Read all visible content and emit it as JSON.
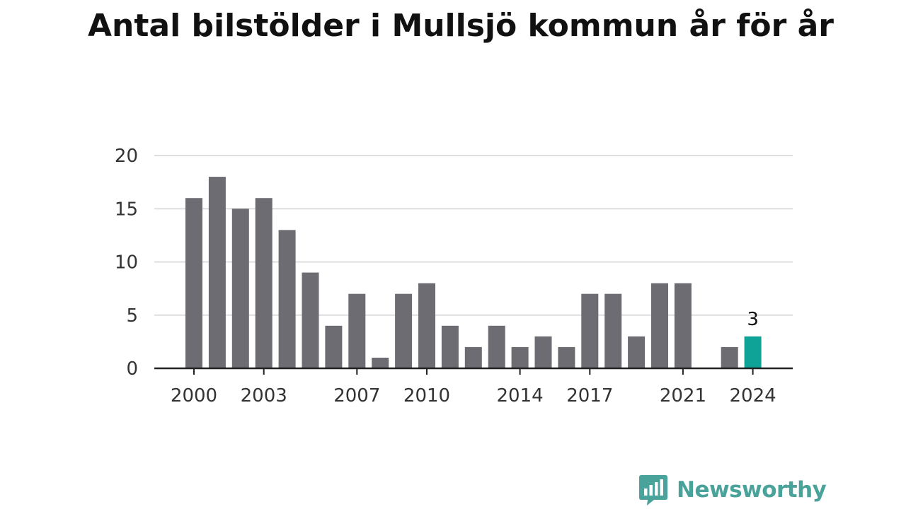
{
  "title": "Antal bilstölder i Mullsjö kommun år för år",
  "brand": {
    "name": "Newsworthy",
    "color": "#4aa39a",
    "icon": "chart-bubble-icon"
  },
  "colors": {
    "bar": "#6d6c72",
    "highlight": "#0fa296",
    "grid": "#dedede",
    "axis": "#222222"
  },
  "chart_data": {
    "type": "bar",
    "x": [
      2000,
      2001,
      2002,
      2003,
      2004,
      2005,
      2006,
      2007,
      2008,
      2009,
      2010,
      2011,
      2012,
      2013,
      2014,
      2015,
      2016,
      2017,
      2018,
      2019,
      2020,
      2021,
      2022,
      2023,
      2024
    ],
    "values": [
      16,
      18,
      15,
      16,
      13,
      9,
      4,
      7,
      1,
      7,
      8,
      4,
      2,
      4,
      2,
      3,
      2,
      7,
      7,
      3,
      8,
      8,
      0,
      2,
      3
    ],
    "x_tick_labels": [
      "2000",
      "2003",
      "2007",
      "2010",
      "2014",
      "2017",
      "2021",
      "2024"
    ],
    "y_ticks": [
      0,
      5,
      10,
      15,
      20
    ],
    "ylim": [
      0,
      20
    ],
    "grid": true,
    "highlight_index": 24,
    "annotations": [
      {
        "index": 24,
        "text": "3"
      }
    ],
    "title": "Antal bilstölder i Mullsjö kommun år för år",
    "xlabel": "",
    "ylabel": ""
  }
}
